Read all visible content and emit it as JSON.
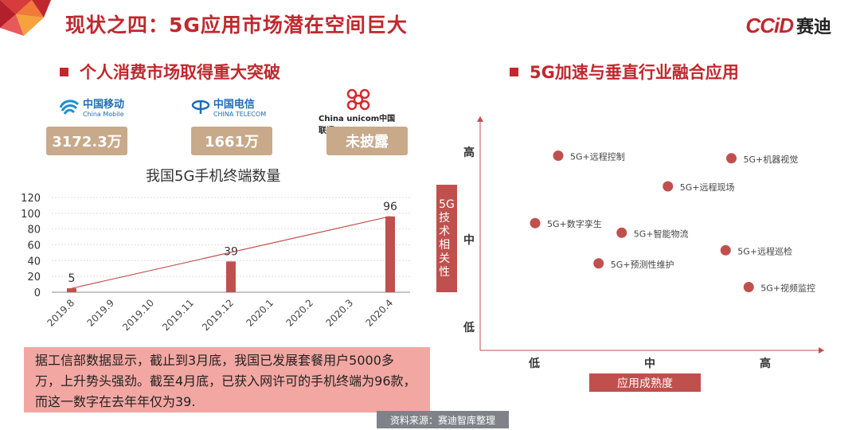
{
  "header": {
    "title": "现状之四：5G应用市场潜在空间巨大",
    "logo_mark": "CCiD",
    "logo_text": "赛迪"
  },
  "left": {
    "section_title": "个人消费市场取得重大突破",
    "carriers": [
      {
        "name_cn": "中国移动",
        "name_en": "China Mobile",
        "value": "3172.3万",
        "icon": "china-mobile-logo"
      },
      {
        "name_cn": "中国电信",
        "name_en": "CHINA TELECOM",
        "value": "1661万",
        "icon": "china-telecom-logo"
      },
      {
        "name_cn": "China unicom中国联通",
        "name_en": "",
        "value": "未披露",
        "icon": "china-unicom-logo"
      }
    ],
    "note": "据工信部数据显示，截止到3月底，我国已发展套餐用户5000多万，上升势头强劲。截至4月底，已获入网许可的手机终端为96款，而这一数字在去年年仅为39."
  },
  "right": {
    "section_title": "5G加速与垂直行业融合应用",
    "y_axis_tag": "5G技术相关性",
    "x_axis_tag": "应用成熟度"
  },
  "source": "资料来源：赛迪智库整理",
  "colors": {
    "brand_red": "#c0282e",
    "bar_red": "#c0504d",
    "badge_tan": "#c8a98a",
    "note_pink": "#f3a7a2",
    "dot_red": "#c0504d"
  },
  "chart_data": [
    {
      "type": "bar",
      "title": "我国5G手机终端数量",
      "categories": [
        "2019.8",
        "2019.9",
        "2019.10",
        "2019.11",
        "2019.12",
        "2020.1",
        "2020.2",
        "2020.3",
        "2020.4"
      ],
      "series": [
        {
          "values": [
            5,
            null,
            null,
            null,
            39,
            null,
            null,
            null,
            96
          ]
        }
      ],
      "data_labels": {
        "2019.8": "5",
        "2019.12": "39",
        "2020.4": "96"
      },
      "trendline": {
        "from": [
          "2019.8",
          5
        ],
        "to": [
          "2020.4",
          96
        ]
      },
      "ylim": [
        0,
        120
      ],
      "yticks": [
        0,
        20,
        40,
        60,
        80,
        100,
        120
      ],
      "grid": true
    },
    {
      "type": "scatter",
      "x_categories": [
        "低",
        "中",
        "高"
      ],
      "y_categories": [
        "低",
        "中",
        "高"
      ],
      "x_axis_label": "应用成熟度",
      "y_axis_label": "5G技术相关性",
      "points": [
        {
          "label": "5G+远程控制",
          "x": 1.4,
          "y": 2.95
        },
        {
          "label": "5G+机器视觉",
          "x": 2.9,
          "y": 2.92
        },
        {
          "label": "5G+远程现场",
          "x": 2.35,
          "y": 2.6
        },
        {
          "label": "5G+数字孪生",
          "x": 1.2,
          "y": 2.18
        },
        {
          "label": "5G+智能物流",
          "x": 1.95,
          "y": 2.07
        },
        {
          "label": "5G+远程巡检",
          "x": 2.85,
          "y": 1.87
        },
        {
          "label": "5G+预测性维护",
          "x": 1.75,
          "y": 1.72
        },
        {
          "label": "5G+视频监控",
          "x": 3.05,
          "y": 1.45
        }
      ]
    }
  ]
}
